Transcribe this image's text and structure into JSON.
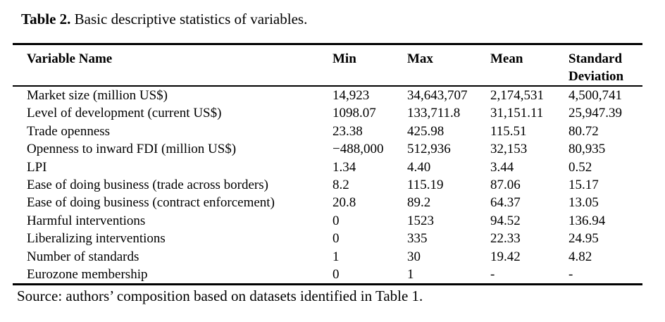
{
  "caption": {
    "label": "Table 2.",
    "text": "Basic descriptive statistics of variables."
  },
  "table": {
    "columns": [
      "Variable Name",
      "Min",
      "Max",
      "Mean",
      "Standard Deviation"
    ],
    "rows": [
      {
        "name": "Market size (million US$)",
        "min": "14,923",
        "max": "34,643,707",
        "mean": "2,174,531",
        "sd": "4,500,741"
      },
      {
        "name": "Level of development (current US$)",
        "min": "1098.07",
        "max": "133,711.8",
        "mean": "31,151.11",
        "sd": "25,947.39"
      },
      {
        "name": "Trade openness",
        "min": "23.38",
        "max": "425.98",
        "mean": "115.51",
        "sd": "80.72"
      },
      {
        "name": "Openness to inward FDI (million US$)",
        "min": "−488,000",
        "max": "512,936",
        "mean": "32,153",
        "sd": "80,935"
      },
      {
        "name": "LPI",
        "min": "1.34",
        "max": "4.40",
        "mean": "3.44",
        "sd": "0.52"
      },
      {
        "name": "Ease of doing business (trade across borders)",
        "min": "8.2",
        "max": "115.19",
        "mean": "87.06",
        "sd": "15.17"
      },
      {
        "name": "Ease of doing business (contract enforcement)",
        "min": "20.8",
        "max": "89.2",
        "mean": "64.37",
        "sd": "13.05"
      },
      {
        "name": "Harmful interventions",
        "min": "0",
        "max": "1523",
        "mean": "94.52",
        "sd": "136.94"
      },
      {
        "name": "Liberalizing interventions",
        "min": "0",
        "max": "335",
        "mean": "22.33",
        "sd": "24.95"
      },
      {
        "name": "Number of standards",
        "min": "1",
        "max": "30",
        "mean": "19.42",
        "sd": "4.82"
      },
      {
        "name": "Eurozone membership",
        "min": "0",
        "max": "1",
        "mean": "-",
        "sd": "-"
      }
    ]
  },
  "source_note": "Source: authors’ composition based on datasets identified in Table 1.",
  "colors": {
    "text": "#000000",
    "background": "#ffffff",
    "rule": "#000000"
  }
}
